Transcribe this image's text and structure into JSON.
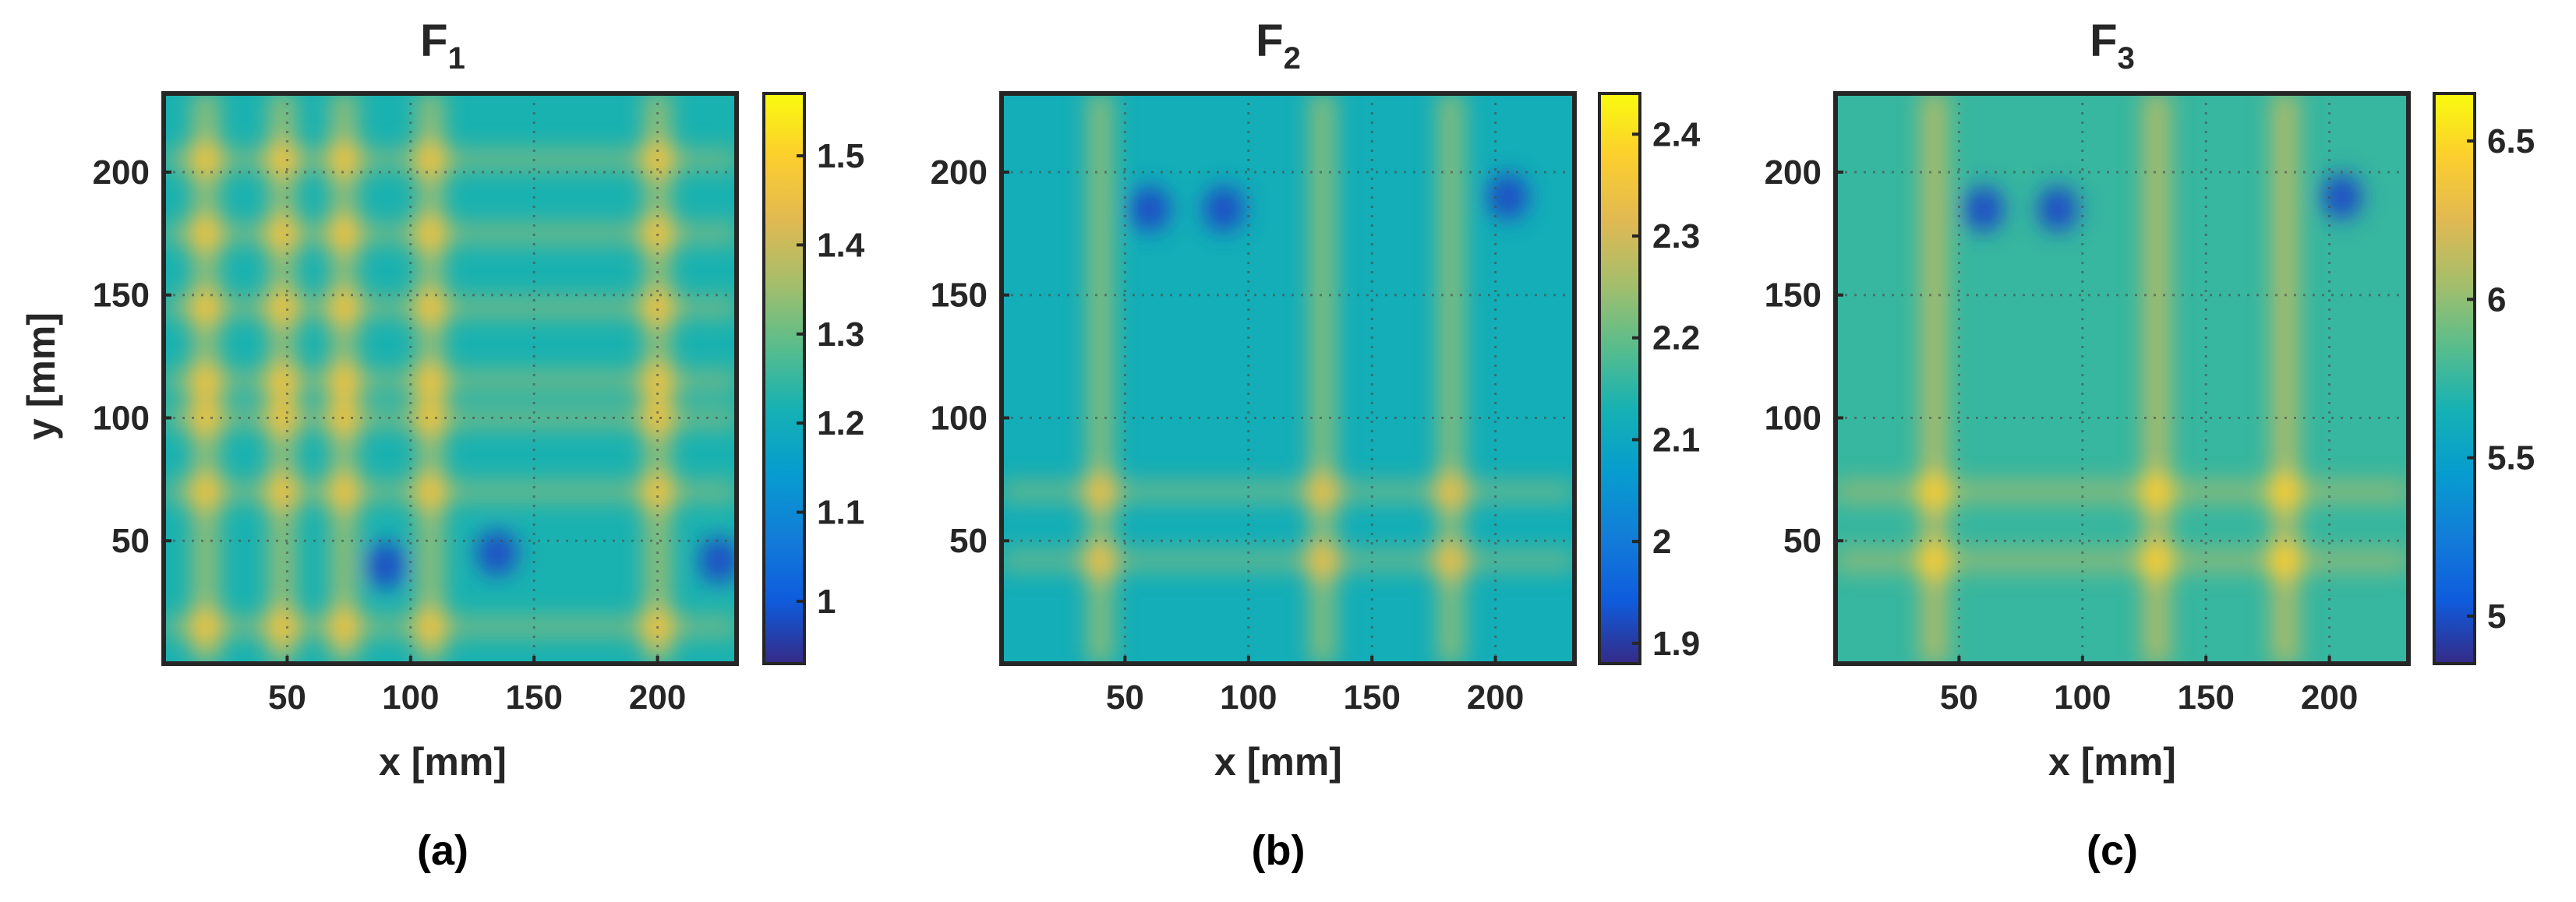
{
  "figure": {
    "captions": [
      "(a)",
      "(b)",
      "(c)"
    ]
  },
  "chart_data": [
    {
      "type": "heatmap",
      "title": "F",
      "title_subscript": "1",
      "caption": "(a)",
      "xlabel": "x [mm]",
      "ylabel": "y [mm]",
      "xlim": [
        0,
        232
      ],
      "ylim": [
        0,
        232
      ],
      "xticks": [
        50,
        100,
        150,
        200
      ],
      "yticks": [
        50,
        100,
        150,
        200
      ],
      "x_tick_labels": [
        "50",
        "100",
        "150",
        "200"
      ],
      "y_tick_labels": [
        "50",
        "100",
        "150",
        "200"
      ],
      "grid": true,
      "colormap": "parula",
      "colorbar": {
        "range": [
          0.93,
          1.57
        ],
        "ticks": [
          1.0,
          1.1,
          1.2,
          1.3,
          1.4,
          1.5
        ],
        "tick_labels": [
          "1",
          "1.1",
          "1.2",
          "1.3",
          "1.4",
          "1.5"
        ]
      },
      "hot_columns_x": [
        17,
        48,
        73,
        108,
        200
      ],
      "hot_rows_y": [
        15,
        70,
        100,
        115,
        145,
        175,
        205
      ],
      "low_spots": [
        [
          135,
          45
        ],
        [
          225,
          42
        ],
        [
          90,
          40
        ]
      ],
      "base_value": 1.22
    },
    {
      "type": "heatmap",
      "title": "F",
      "title_subscript": "2",
      "caption": "(b)",
      "xlabel": "x [mm]",
      "ylabel": "",
      "xlim": [
        0,
        232
      ],
      "ylim": [
        0,
        232
      ],
      "xticks": [
        50,
        100,
        150,
        200
      ],
      "yticks": [
        50,
        100,
        150,
        200
      ],
      "x_tick_labels": [
        "50",
        "100",
        "150",
        "200"
      ],
      "y_tick_labels": [
        "50",
        "100",
        "150",
        "200"
      ],
      "grid": true,
      "colormap": "parula",
      "colorbar": {
        "range": [
          1.88,
          2.44
        ],
        "ticks": [
          1.9,
          2.0,
          2.1,
          2.2,
          2.3,
          2.4
        ],
        "tick_labels": [
          "1.9",
          "2",
          "2.1",
          "2.2",
          "2.3",
          "2.4"
        ]
      },
      "hot_columns_x": [
        40,
        130,
        182
      ],
      "hot_rows_y": [
        42,
        70
      ],
      "low_spots": [
        [
          205,
          190
        ],
        [
          90,
          185
        ],
        [
          60,
          185
        ]
      ],
      "base_value": 2.12
    },
    {
      "type": "heatmap",
      "title": "F",
      "title_subscript": "3",
      "caption": "(c)",
      "xlabel": "x [mm]",
      "ylabel": "",
      "xlim": [
        0,
        232
      ],
      "ylim": [
        0,
        232
      ],
      "xticks": [
        50,
        100,
        150,
        200
      ],
      "yticks": [
        50,
        100,
        150,
        200
      ],
      "x_tick_labels": [
        "50",
        "100",
        "150",
        "200"
      ],
      "y_tick_labels": [
        "50",
        "100",
        "150",
        "200"
      ],
      "grid": true,
      "colormap": "parula",
      "colorbar": {
        "range": [
          4.85,
          6.65
        ],
        "ticks": [
          5,
          5.5,
          6,
          6.5
        ],
        "tick_labels": [
          "5",
          "5.5",
          "6",
          "6.5"
        ]
      },
      "hot_columns_x": [
        40,
        130,
        182
      ],
      "hot_rows_y": [
        42,
        70
      ],
      "low_spots": [
        [
          205,
          190
        ],
        [
          90,
          185
        ],
        [
          60,
          185
        ]
      ],
      "base_value": 5.75
    }
  ]
}
